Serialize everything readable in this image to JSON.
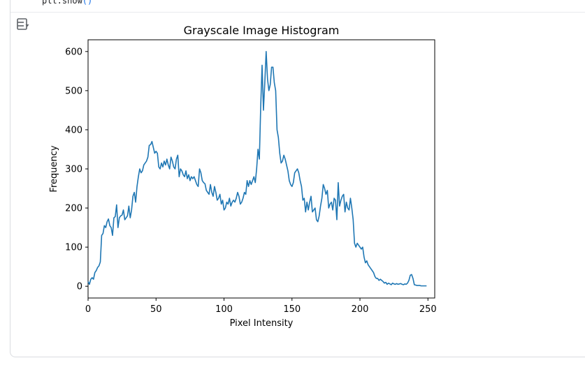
{
  "code": {
    "line": "plt.show",
    "call_parens": "()"
  },
  "output_toggle": {
    "icon": "output-toggle-icon"
  },
  "chart_data": {
    "type": "line",
    "title": "Grayscale Image Histogram",
    "xlabel": "Pixel Intensity",
    "ylabel": "Frequency",
    "xlim": [
      0,
      255
    ],
    "ylim": [
      -30,
      630
    ],
    "xticks": [
      0,
      50,
      100,
      150,
      200,
      250
    ],
    "yticks": [
      0,
      100,
      200,
      300,
      400,
      500,
      600
    ],
    "grid": false,
    "color": "#1f77b4",
    "series": [
      {
        "values": [
          12,
          5,
          18,
          22,
          18,
          35,
          40,
          48,
          52,
          62,
          130,
          135,
          155,
          150,
          165,
          172,
          155,
          150,
          130,
          175,
          178,
          208,
          150,
          175,
          180,
          182,
          195,
          170,
          175,
          180,
          205,
          175,
          195,
          230,
          240,
          215,
          255,
          280,
          300,
          290,
          295,
          310,
          315,
          320,
          330,
          360,
          362,
          370,
          355,
          340,
          345,
          340,
          305,
          300,
          315,
          305,
          320,
          310,
          325,
          310,
          300,
          330,
          320,
          305,
          300,
          325,
          335,
          280,
          300,
          295,
          285,
          280,
          295,
          275,
          285,
          270,
          280,
          275,
          280,
          270,
          260,
          255,
          300,
          290,
          270,
          265,
          262,
          245,
          240,
          235,
          260,
          240,
          230,
          255,
          240,
          220,
          225,
          235,
          210,
          220,
          195,
          200,
          215,
          210,
          225,
          205,
          215,
          220,
          215,
          225,
          240,
          230,
          210,
          215,
          225,
          240,
          235,
          270,
          255,
          270,
          260,
          270,
          280,
          265,
          300,
          350,
          325,
          460,
          565,
          450,
          520,
          600,
          530,
          500,
          515,
          560,
          560,
          520,
          500,
          400,
          380,
          340,
          315,
          320,
          335,
          325,
          310,
          295,
          270,
          260,
          255,
          265,
          290,
          295,
          300,
          290,
          270,
          255,
          220,
          225,
          190,
          215,
          195,
          215,
          230,
          190,
          195,
          200,
          170,
          165,
          180,
          205,
          225,
          260,
          250,
          235,
          245,
          200,
          210,
          215,
          195,
          225,
          220,
          170,
          265,
          205,
          220,
          230,
          235,
          190,
          215,
          200,
          195,
          225,
          200,
          170,
          110,
          100,
          110,
          105,
          100,
          95,
          100,
          75,
          60,
          65,
          55,
          50,
          45,
          40,
          35,
          25,
          20,
          20,
          15,
          18,
          15,
          12,
          8,
          10,
          5,
          8,
          6,
          4,
          8,
          6,
          5,
          7,
          5,
          6,
          7,
          5,
          4,
          6,
          5,
          8,
          15,
          28,
          30,
          20,
          4,
          3,
          2,
          2,
          2,
          1,
          1,
          1,
          1,
          1
        ]
      }
    ]
  }
}
